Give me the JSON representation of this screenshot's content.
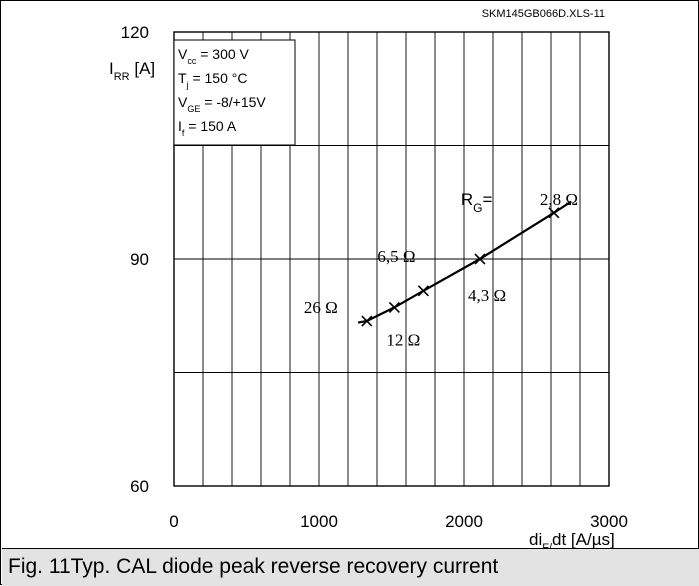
{
  "file_id": "SKM145GB066D.XLS-11",
  "caption": "Fig. 11Typ. CAL diode peak reverse recovery current",
  "conditions": [
    {
      "main": "V",
      "sub": "cc",
      "rest": " = 300 V"
    },
    {
      "main": "T",
      "sub": "j",
      "rest": " = 150 °C"
    },
    {
      "main": "V",
      "sub": "GE",
      "rest": " = -8/+15V"
    },
    {
      "main": "I",
      "sub": "f",
      "rest": " =  150 A"
    }
  ],
  "chart_data": {
    "type": "line",
    "title": "",
    "xlabel": "di_F/dt [A/µs]",
    "xlabel_parts": {
      "main": "di",
      "sub": "F/",
      "rest": "dt [A/µs]"
    },
    "ylabel": "I_RR [A]",
    "ylabel_parts": {
      "main": "I",
      "sub": "RR",
      "rest": " [A]"
    },
    "xlim": [
      0,
      3000
    ],
    "ylim": [
      60,
      120
    ],
    "x_ticks": [
      "0",
      "1000",
      "2000",
      "3000"
    ],
    "y_ticks": [
      "60",
      "90",
      "120"
    ],
    "grid": true,
    "legend": "none",
    "series": [
      {
        "values": [
          [
            1330,
            81.8
          ],
          [
            1520,
            83.6
          ],
          [
            1720,
            85.8
          ],
          [
            2110,
            90.0
          ],
          [
            2620,
            96.1
          ]
        ],
        "line_extent": [
          [
            1270,
            81.6
          ],
          [
            2740,
            97.6
          ]
        ]
      }
    ],
    "annotations": [
      {
        "text": "26 Ω",
        "x": 1330,
        "y": 81.8
      },
      {
        "text": "12 Ω",
        "x": 1520,
        "y": 83.6
      },
      {
        "text": "6,5 Ω",
        "x": 1720,
        "y": 85.8
      },
      {
        "text": "4,3 Ω",
        "x": 2110,
        "y": 90.0
      },
      {
        "text": "2,8 Ω",
        "x": 2620,
        "y": 96.1,
        "prefix_main": "R",
        "prefix_sub": "G",
        "prefix_rest": "="
      }
    ]
  }
}
